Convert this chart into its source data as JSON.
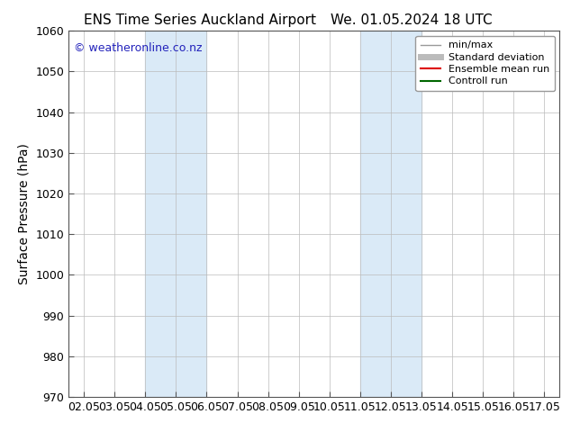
{
  "title_left": "ENS Time Series Auckland Airport",
  "title_right": "We. 01.05.2024 18 UTC",
  "ylabel": "Surface Pressure (hPa)",
  "xlabel": "",
  "ylim": [
    970,
    1060
  ],
  "yticks": [
    970,
    980,
    990,
    1000,
    1010,
    1020,
    1030,
    1040,
    1050,
    1060
  ],
  "xtick_labels": [
    "02.05",
    "03.05",
    "04.05",
    "05.05",
    "06.05",
    "07.05",
    "08.05",
    "09.05",
    "10.05",
    "11.05",
    "12.05",
    "13.05",
    "14.05",
    "15.05",
    "16.05",
    "17.05"
  ],
  "xtick_positions": [
    0,
    1,
    2,
    3,
    4,
    5,
    6,
    7,
    8,
    9,
    10,
    11,
    12,
    13,
    14,
    15
  ],
  "xlim": [
    -0.5,
    15.5
  ],
  "shaded_regions": [
    {
      "x_start": 2,
      "x_end": 4,
      "color": "#daeaf7"
    },
    {
      "x_start": 9,
      "x_end": 11,
      "color": "#daeaf7"
    }
  ],
  "watermark_text": "© weatheronline.co.nz",
  "watermark_color": "#2222bb",
  "background_color": "#ffffff",
  "plot_bg_color": "#ffffff",
  "grid_color": "#bbbbbb",
  "legend_entries": [
    {
      "label": "min/max",
      "color": "#999999",
      "linestyle": "-",
      "linewidth": 1.0
    },
    {
      "label": "Standard deviation",
      "color": "#bbbbbb",
      "linestyle": "-",
      "linewidth": 5
    },
    {
      "label": "Ensemble mean run",
      "color": "#dd0000",
      "linestyle": "-",
      "linewidth": 1.5
    },
    {
      "label": "Controll run",
      "color": "#006600",
      "linestyle": "-",
      "linewidth": 1.5
    }
  ],
  "title_fontsize": 11,
  "axis_label_fontsize": 10,
  "tick_fontsize": 9,
  "legend_fontsize": 8,
  "watermark_fontsize": 9
}
